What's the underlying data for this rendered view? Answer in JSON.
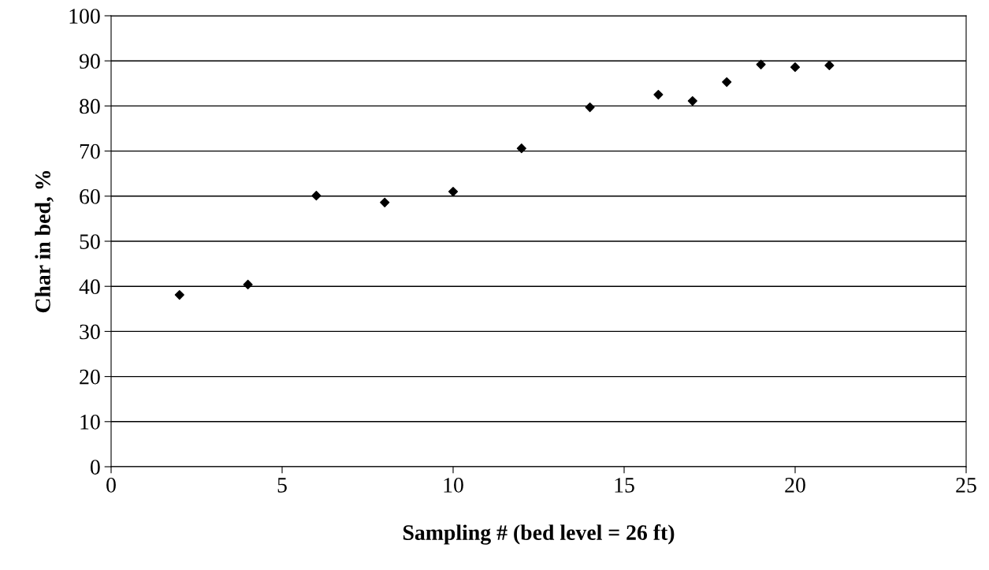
{
  "chart_data": {
    "type": "scatter",
    "xlabel": "Sampling # (bed level = 26 ft)",
    "ylabel": "Char in bed, %",
    "x": [
      2,
      4,
      6,
      8,
      10,
      12,
      14,
      16,
      17,
      18,
      19,
      20,
      21
    ],
    "series": [
      {
        "color": "#000000",
        "values": [
          38.1,
          40.4,
          60.1,
          58.6,
          61.0,
          70.6,
          79.7,
          82.5,
          81.1,
          85.3,
          89.2,
          88.6,
          89.0
        ]
      }
    ],
    "xlim": [
      0,
      25
    ],
    "xticks": [
      0,
      5,
      10,
      15,
      20,
      25
    ],
    "ylim": [
      0,
      100
    ],
    "yticks": [
      0,
      10,
      20,
      30,
      40,
      50,
      60,
      70,
      80,
      90,
      100
    ],
    "grid": "y",
    "marker": "diamond"
  }
}
